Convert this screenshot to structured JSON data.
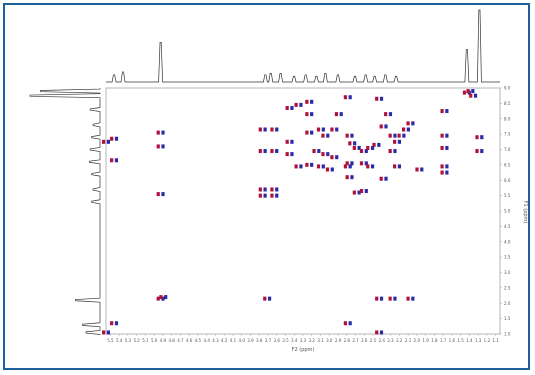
{
  "chart_data": {
    "type": "scatter",
    "title": "",
    "xlabel": "F2 (ppm)",
    "ylabel": "F1 (ppm)",
    "x_ticks": [
      "5.5",
      "5.4",
      "5.3",
      "5.2",
      "5.1",
      "5.0",
      "4.9",
      "4.8",
      "4.7",
      "4.6",
      "4.5",
      "4.4",
      "4.3",
      "4.2",
      "4.1",
      "4.0",
      "3.9",
      "3.8",
      "3.7",
      "3.6",
      "3.5",
      "3.4",
      "3.3",
      "3.2",
      "3.1",
      "3.0",
      "2.9",
      "2.8",
      "2.7",
      "2.6",
      "2.5",
      "2.4",
      "2.3",
      "2.2",
      "2.1",
      "2.0",
      "1.9",
      "1.8",
      "1.7",
      "1.6",
      "1.5",
      "1.4",
      "1.3",
      "1.2",
      "1.1"
    ],
    "y_ticks": [
      "1.0",
      "1.5",
      "2.0",
      "2.5",
      "3.0",
      "3.5",
      "4.0",
      "4.5",
      "5.0",
      "5.5",
      "6.0",
      "6.5",
      "7.0",
      "7.5",
      "8.0",
      "8.5",
      "9.0"
    ],
    "xlim": [
      5.5,
      1.1
    ],
    "ylim": [
      1.0,
      9.0
    ],
    "grid": false,
    "legend": "none",
    "colors": {
      "peak_positive": "#b0103a",
      "peak_negative": "#2a2aa8",
      "trace": "#333333",
      "frame": "#1f5f9e"
    },
    "x_projection": [
      {
        "x": 5.41,
        "h": 0.1
      },
      {
        "x": 5.31,
        "h": 0.14
      },
      {
        "x": 4.89,
        "h": 0.55
      },
      {
        "x": 3.72,
        "h": 0.1
      },
      {
        "x": 3.66,
        "h": 0.12
      },
      {
        "x": 3.55,
        "h": 0.12
      },
      {
        "x": 3.4,
        "h": 0.08
      },
      {
        "x": 3.27,
        "h": 0.1
      },
      {
        "x": 3.15,
        "h": 0.08
      },
      {
        "x": 3.05,
        "h": 0.12
      },
      {
        "x": 2.91,
        "h": 0.1
      },
      {
        "x": 2.72,
        "h": 0.08
      },
      {
        "x": 2.6,
        "h": 0.1
      },
      {
        "x": 2.5,
        "h": 0.08
      },
      {
        "x": 2.38,
        "h": 0.1
      },
      {
        "x": 2.26,
        "h": 0.08
      },
      {
        "x": 1.47,
        "h": 0.45
      },
      {
        "x": 1.33,
        "h": 1.0
      }
    ],
    "y_projection": [
      {
        "y": 1.05,
        "h": 0.2
      },
      {
        "y": 1.3,
        "h": 0.25
      },
      {
        "y": 2.1,
        "h": 0.35
      },
      {
        "y": 5.3,
        "h": 0.12
      },
      {
        "y": 5.7,
        "h": 0.1
      },
      {
        "y": 6.2,
        "h": 0.12
      },
      {
        "y": 6.6,
        "h": 0.15
      },
      {
        "y": 7.0,
        "h": 0.14
      },
      {
        "y": 7.4,
        "h": 0.12
      },
      {
        "y": 7.8,
        "h": 0.1
      },
      {
        "y": 8.3,
        "h": 0.14
      },
      {
        "y": 8.75,
        "h": 1.0
      },
      {
        "y": 8.9,
        "h": 0.85
      }
    ],
    "peaks": [
      {
        "x": 5.5,
        "y": 7.25
      },
      {
        "x": 5.41,
        "y": 7.35
      },
      {
        "x": 5.41,
        "y": 6.65
      },
      {
        "x": 5.41,
        "y": 1.35
      },
      {
        "x": 5.5,
        "y": 1.05
      },
      {
        "x": 4.89,
        "y": 7.55
      },
      {
        "x": 4.89,
        "y": 7.1
      },
      {
        "x": 4.89,
        "y": 5.55
      },
      {
        "x": 4.89,
        "y": 2.15
      },
      {
        "x": 4.86,
        "y": 2.2
      },
      {
        "x": 3.75,
        "y": 7.65
      },
      {
        "x": 3.62,
        "y": 7.65
      },
      {
        "x": 3.75,
        "y": 6.95
      },
      {
        "x": 3.62,
        "y": 6.95
      },
      {
        "x": 3.75,
        "y": 5.7
      },
      {
        "x": 3.62,
        "y": 5.7
      },
      {
        "x": 3.75,
        "y": 5.5
      },
      {
        "x": 3.62,
        "y": 5.5
      },
      {
        "x": 3.7,
        "y": 2.15
      },
      {
        "x": 3.45,
        "y": 8.35
      },
      {
        "x": 3.35,
        "y": 8.45
      },
      {
        "x": 3.23,
        "y": 8.55
      },
      {
        "x": 3.23,
        "y": 8.15
      },
      {
        "x": 3.23,
        "y": 7.55
      },
      {
        "x": 3.45,
        "y": 7.25
      },
      {
        "x": 3.45,
        "y": 6.85
      },
      {
        "x": 3.35,
        "y": 6.45
      },
      {
        "x": 3.23,
        "y": 6.5
      },
      {
        "x": 3.1,
        "y": 7.65
      },
      {
        "x": 3.05,
        "y": 7.45
      },
      {
        "x": 2.95,
        "y": 7.65
      },
      {
        "x": 3.15,
        "y": 6.95
      },
      {
        "x": 3.05,
        "y": 6.85
      },
      {
        "x": 2.95,
        "y": 6.75
      },
      {
        "x": 2.9,
        "y": 8.15
      },
      {
        "x": 2.8,
        "y": 8.7
      },
      {
        "x": 2.78,
        "y": 7.45
      },
      {
        "x": 2.75,
        "y": 7.2
      },
      {
        "x": 2.7,
        "y": 7.05
      },
      {
        "x": 2.62,
        "y": 6.95
      },
      {
        "x": 2.55,
        "y": 7.05
      },
      {
        "x": 2.48,
        "y": 7.15
      },
      {
        "x": 2.62,
        "y": 6.55
      },
      {
        "x": 2.55,
        "y": 6.45
      },
      {
        "x": 2.78,
        "y": 6.55
      },
      {
        "x": 2.7,
        "y": 5.6
      },
      {
        "x": 2.62,
        "y": 5.65
      },
      {
        "x": 3.1,
        "y": 6.45
      },
      {
        "x": 3.0,
        "y": 6.35
      },
      {
        "x": 2.8,
        "y": 6.45
      },
      {
        "x": 2.78,
        "y": 6.1
      },
      {
        "x": 2.45,
        "y": 8.65
      },
      {
        "x": 2.4,
        "y": 7.75
      },
      {
        "x": 2.3,
        "y": 7.45
      },
      {
        "x": 2.25,
        "y": 7.25
      },
      {
        "x": 2.2,
        "y": 7.45
      },
      {
        "x": 2.15,
        "y": 7.65
      },
      {
        "x": 2.1,
        "y": 7.85
      },
      {
        "x": 2.3,
        "y": 6.95
      },
      {
        "x": 2.25,
        "y": 6.45
      },
      {
        "x": 2.4,
        "y": 6.05
      },
      {
        "x": 2.0,
        "y": 6.35
      },
      {
        "x": 2.35,
        "y": 8.15
      },
      {
        "x": 2.45,
        "y": 2.15
      },
      {
        "x": 2.3,
        "y": 2.15
      },
      {
        "x": 2.1,
        "y": 2.15
      },
      {
        "x": 2.45,
        "y": 1.05
      },
      {
        "x": 2.8,
        "y": 1.35
      },
      {
        "x": 1.72,
        "y": 8.25
      },
      {
        "x": 1.72,
        "y": 7.45
      },
      {
        "x": 1.72,
        "y": 7.05
      },
      {
        "x": 1.72,
        "y": 6.45
      },
      {
        "x": 1.72,
        "y": 6.25
      },
      {
        "x": 1.47,
        "y": 8.85
      },
      {
        "x": 1.43,
        "y": 8.9
      },
      {
        "x": 1.4,
        "y": 8.75
      },
      {
        "x": 1.33,
        "y": 7.4
      },
      {
        "x": 1.33,
        "y": 6.95
      }
    ]
  }
}
